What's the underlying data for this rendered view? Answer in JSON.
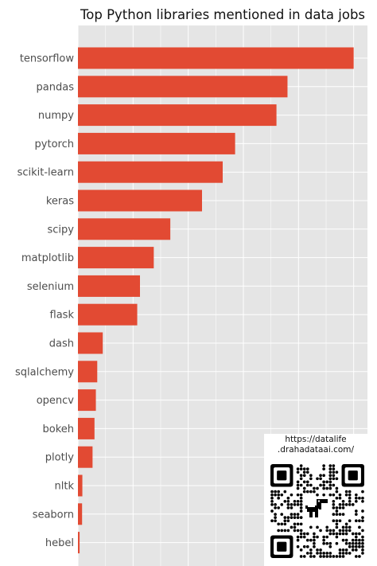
{
  "chart_data": {
    "type": "bar",
    "orientation": "horizontal",
    "title": "Top Python libraries mentioned in data jobs",
    "xlabel": "",
    "ylabel": "",
    "categories": [
      "tensorflow",
      "pandas",
      "numpy",
      "pytorch",
      "scikit-learn",
      "keras",
      "scipy",
      "matplotlib",
      "selenium",
      "flask",
      "dash",
      "sqlalchemy",
      "opencv",
      "bokeh",
      "plotly",
      "nltk",
      "seaborn",
      "hebel"
    ],
    "values": [
      100,
      76,
      72,
      57,
      52.5,
      45,
      33.5,
      27.5,
      22.5,
      21.5,
      9,
      7,
      6.5,
      6,
      5.3,
      1.6,
      1.5,
      0.6
    ],
    "xlim": [
      0,
      105
    ],
    "grid": true,
    "legend": "none",
    "colors": {
      "bar": "#e24a33",
      "panel": "#e5e5e5",
      "grid": "#ffffff"
    }
  },
  "qr_panel": {
    "caption_line1": "https://datalife",
    "caption_line2": ".drahadataai.com/",
    "icon": "dinosaur-icon"
  }
}
